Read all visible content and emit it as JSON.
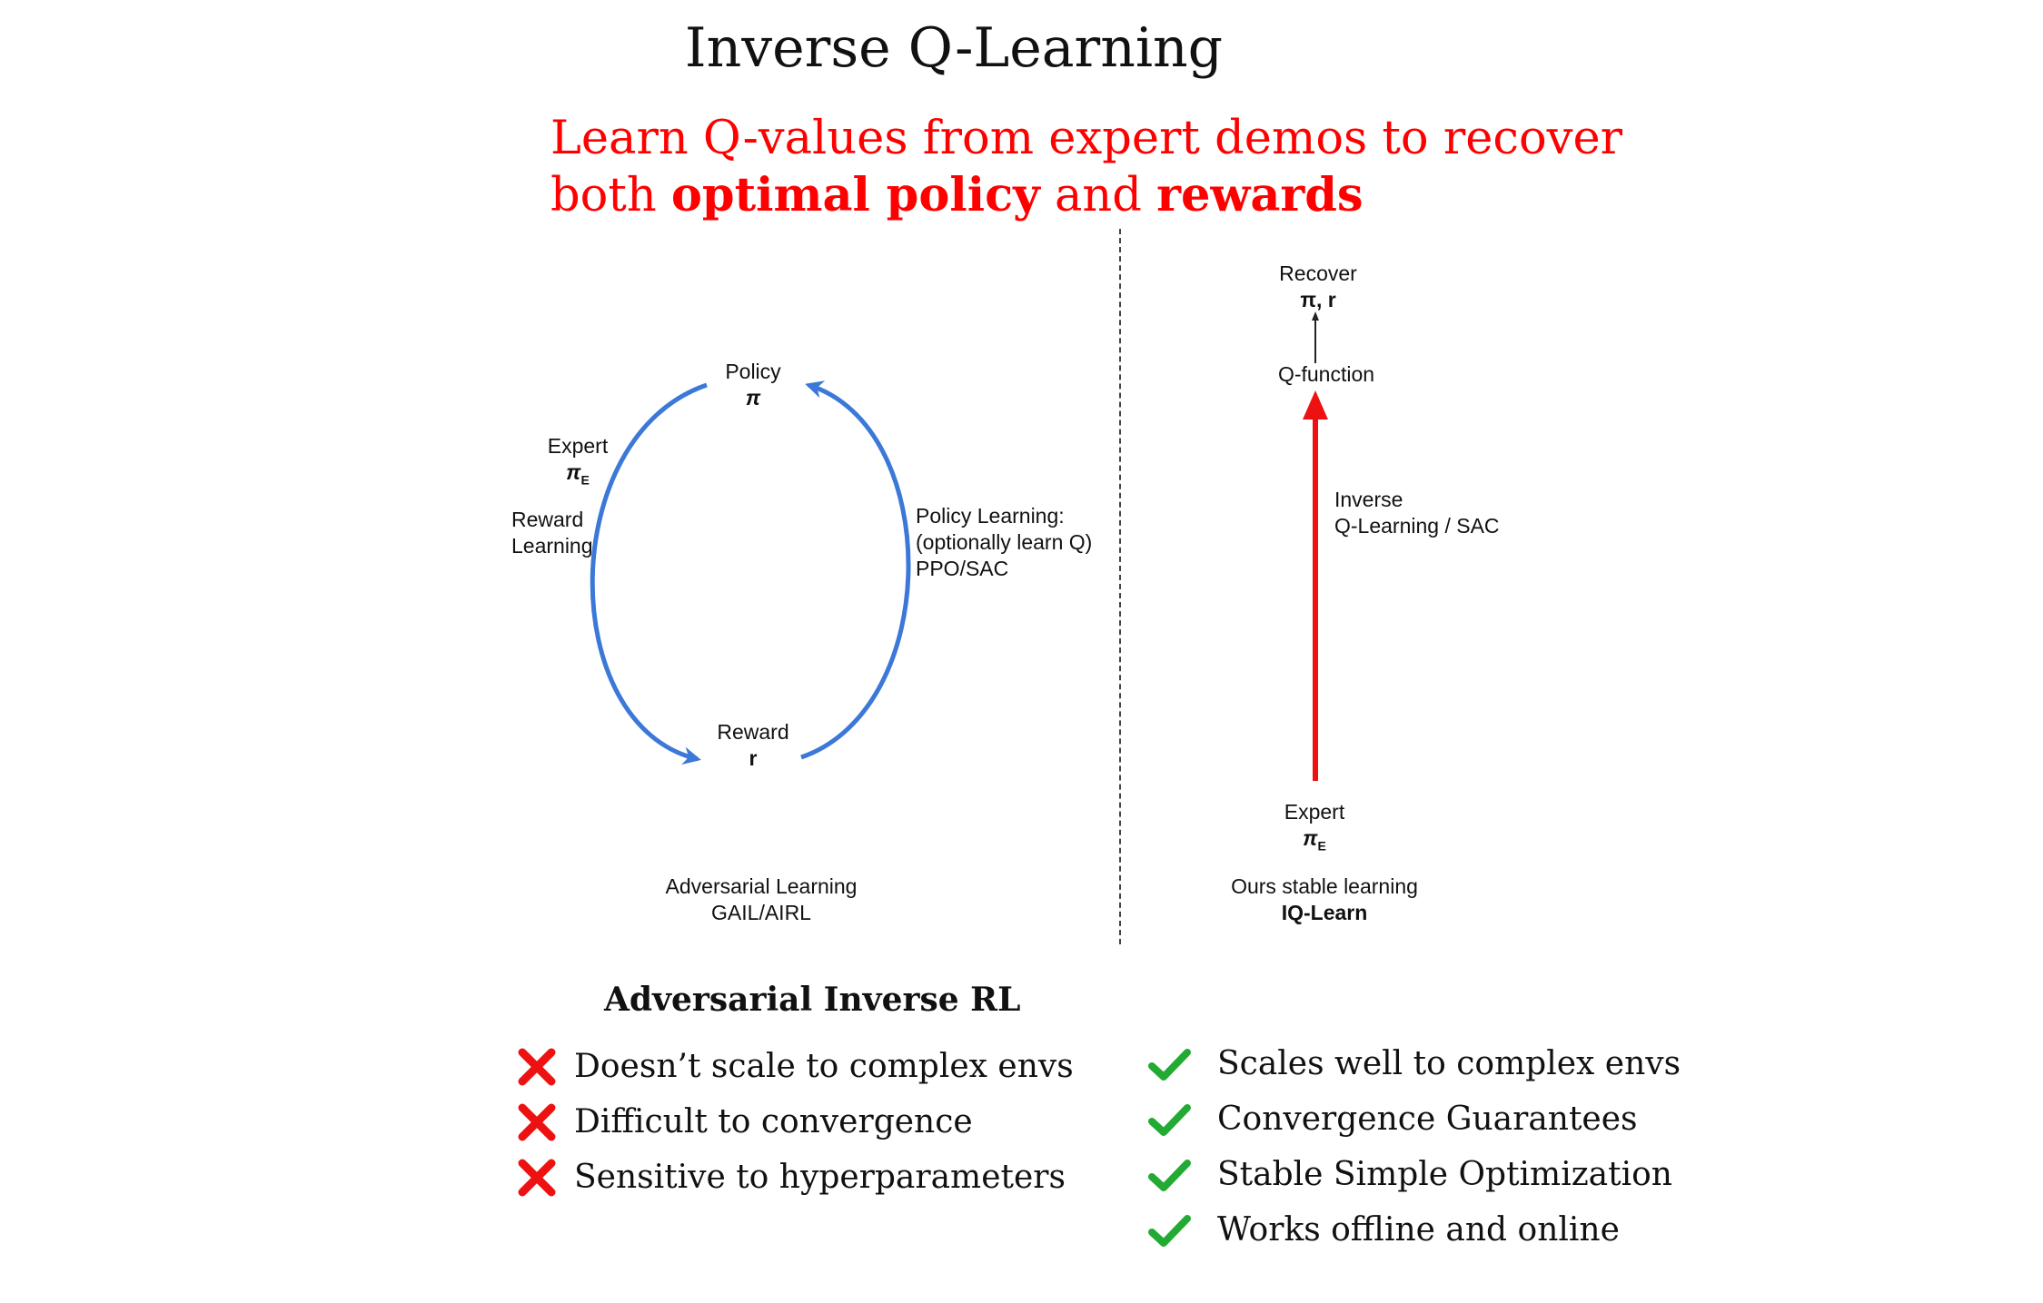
{
  "title": "Inverse Q-Learning",
  "subtitle": {
    "line1": "Learn Q-values from expert demos to recover",
    "line2_prefix": "both ",
    "line2_strong1": "optimal policy",
    "line2_mid": " and ",
    "line2_strong2": "rewards"
  },
  "left_diagram": {
    "policy_label": "Policy",
    "policy_symbol": "π",
    "reward_label": "Reward",
    "reward_symbol": "r",
    "expert_label": "Expert",
    "expert_symbol": "π",
    "expert_sub": "E",
    "reward_learning": [
      "Reward",
      "Learning"
    ],
    "policy_learning": [
      "Policy Learning:",
      "(optionally learn Q)",
      "PPO/SAC"
    ],
    "caption": [
      "Adversarial Learning",
      "GAIL/AIRL"
    ],
    "arrow_color": "#3b78d8"
  },
  "right_diagram": {
    "recover_label": "Recover",
    "recover_symbols": "π, r",
    "qfunction_label": "Q-function",
    "method_label": [
      "Inverse",
      "Q-Learning / SAC"
    ],
    "expert_label": "Expert",
    "expert_symbol": "π",
    "expert_sub": "E",
    "caption_line1": "Ours stable learning",
    "caption_line2": "IQ-Learn",
    "arrow_color": "#ee1111"
  },
  "cons": {
    "heading": "Adversarial Inverse RL",
    "icon": "cross-icon",
    "color": "#ee1111",
    "items": [
      "Doesn’t scale to complex envs",
      "Difficult to convergence",
      "Sensitive to hyperparameters"
    ]
  },
  "pros": {
    "icon": "check-icon",
    "color": "#22aa33",
    "items": [
      "Scales well to complex envs",
      "Convergence Guarantees",
      "Stable Simple Optimization",
      "Works offline and online"
    ]
  }
}
